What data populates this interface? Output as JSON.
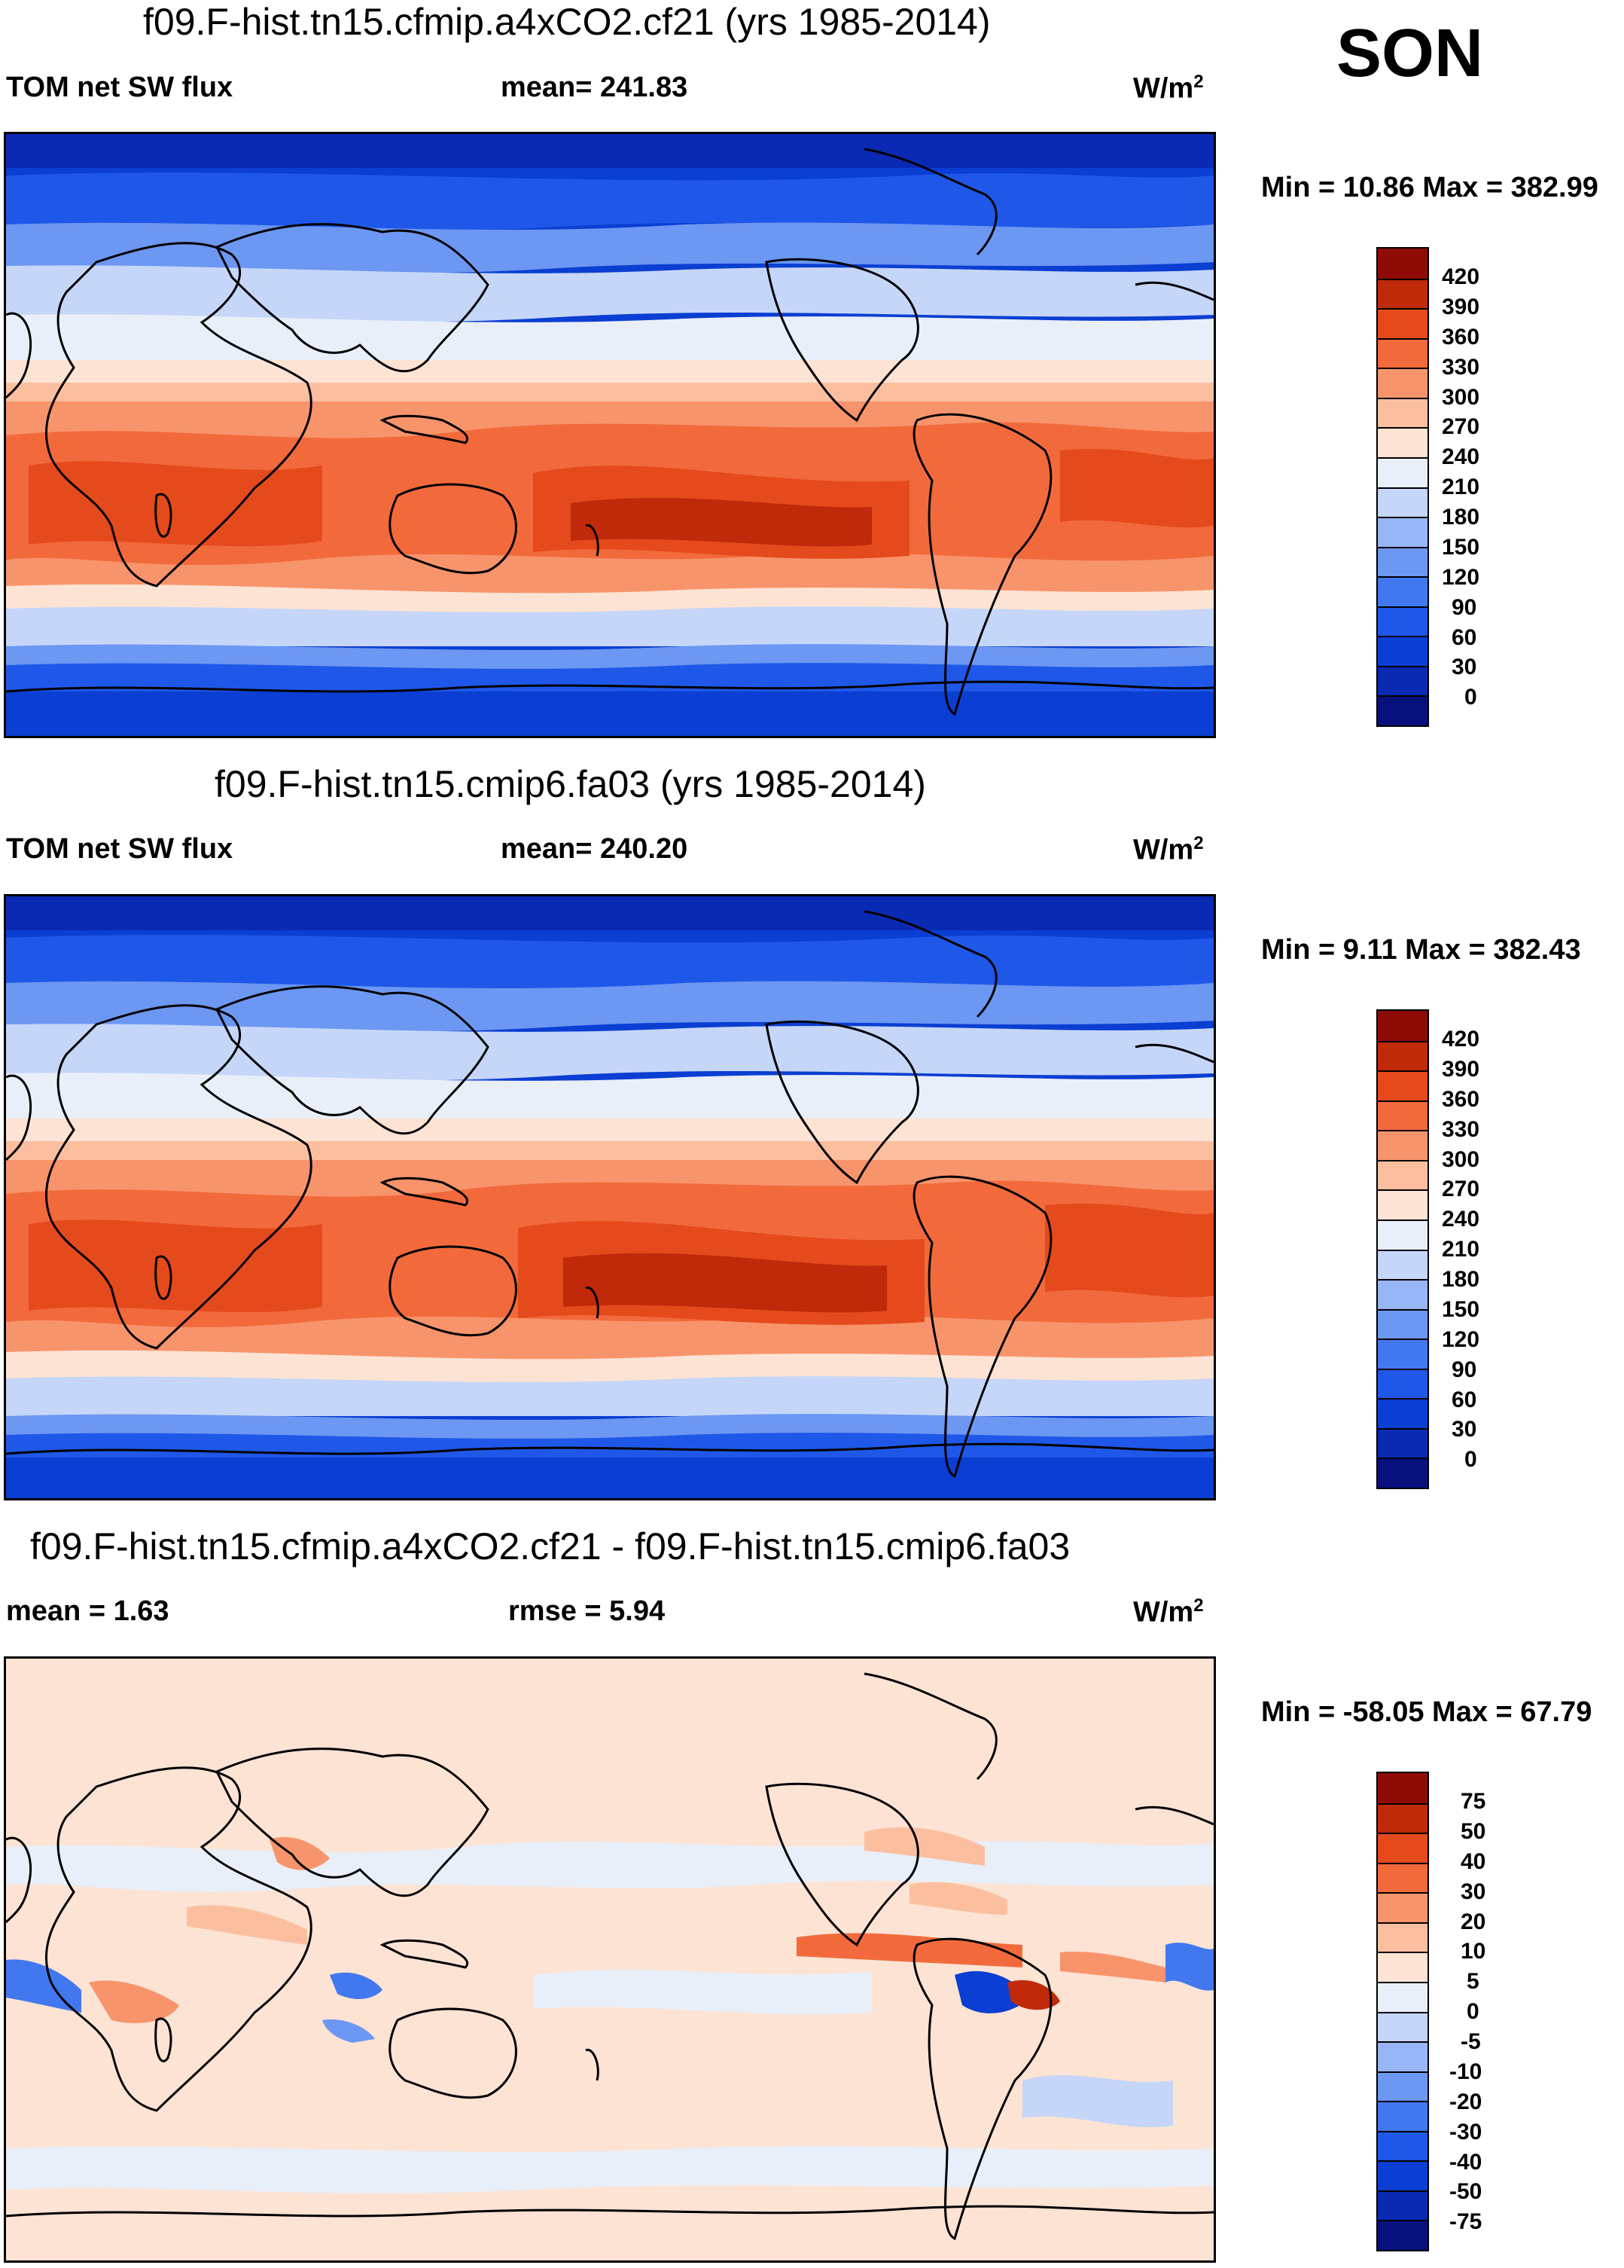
{
  "season": "SON",
  "panels": [
    {
      "id": "top",
      "title": "f09.F-hist.tn15.cfmip.a4xCO2.cf21 (yrs 1985-2014)",
      "left_label": "TOM net SW flux",
      "center_label": "mean= 241.83",
      "units_base": "W/m",
      "units_sup": "2",
      "minmax": "Min =  10.86 Max = 382.99",
      "variant": "abs"
    },
    {
      "id": "middle",
      "title": "f09.F-hist.tn15.cmip6.fa03 (yrs 1985-2014)",
      "left_label": "TOM net SW flux",
      "center_label": "mean= 240.20",
      "units_base": "W/m",
      "units_sup": "2",
      "minmax": "Min =   9.11 Max = 382.43",
      "variant": "abs"
    },
    {
      "id": "bottom",
      "title": "f09.F-hist.tn15.cfmip.a4xCO2.cf21 - f09.F-hist.tn15.cmip6.fa03",
      "left_label": "mean =   1.63",
      "center_label": "rmse =   5.94",
      "units_base": "W/m",
      "units_sup": "2",
      "minmax": "Min = -58.05 Max =  67.79",
      "variant": "diff"
    }
  ],
  "chart_data": [
    {
      "type": "heatmap",
      "title": "f09.F-hist.tn15.cfmip.a4xCO2.cf21 (yrs 1985-2014)",
      "variable": "TOM net SW flux",
      "mean": 241.83,
      "min": 10.86,
      "max": 382.99,
      "units": "W/m2",
      "levels": [
        0,
        30,
        60,
        90,
        120,
        150,
        180,
        210,
        240,
        270,
        300,
        330,
        360,
        390,
        420
      ],
      "colors": [
        "#08107e",
        "#0a2ab4",
        "#0b3ed2",
        "#1f58e8",
        "#4178ef",
        "#6c97f2",
        "#98b5f5",
        "#c5d6f8",
        "#e9eff9",
        "#fce3d3",
        "#fbbfa0",
        "#f8946b",
        "#f26a3c",
        "#e54a1c",
        "#c02a0a",
        "#8e0c05"
      ]
    },
    {
      "type": "heatmap",
      "title": "f09.F-hist.tn15.cmip6.fa03 (yrs 1985-2014)",
      "variable": "TOM net SW flux",
      "mean": 240.2,
      "min": 9.11,
      "max": 382.43,
      "units": "W/m2",
      "levels": [
        0,
        30,
        60,
        90,
        120,
        150,
        180,
        210,
        240,
        270,
        300,
        330,
        360,
        390,
        420
      ],
      "colors": [
        "#08107e",
        "#0a2ab4",
        "#0b3ed2",
        "#1f58e8",
        "#4178ef",
        "#6c97f2",
        "#98b5f5",
        "#c5d6f8",
        "#e9eff9",
        "#fce3d3",
        "#fbbfa0",
        "#f8946b",
        "#f26a3c",
        "#e54a1c",
        "#c02a0a",
        "#8e0c05"
      ]
    },
    {
      "type": "heatmap",
      "title": "f09.F-hist.tn15.cfmip.a4xCO2.cf21 - f09.F-hist.tn15.cmip6.fa03",
      "variable": "difference",
      "mean": 1.63,
      "rmse": 5.94,
      "min": -58.05,
      "max": 67.79,
      "units": "W/m2",
      "levels": [
        -75,
        -50,
        -40,
        -30,
        -20,
        -10,
        -5,
        0,
        5,
        10,
        20,
        30,
        40,
        50,
        75
      ],
      "colors": [
        "#08107e",
        "#0a2ab4",
        "#0b3ed2",
        "#1f58e8",
        "#4178ef",
        "#6c97f2",
        "#98b5f5",
        "#c5d6f8",
        "#e9eff9",
        "#fce3d3",
        "#fbbfa0",
        "#f8946b",
        "#f26a3c",
        "#e54a1c",
        "#c02a0a",
        "#8e0c05"
      ]
    }
  ]
}
